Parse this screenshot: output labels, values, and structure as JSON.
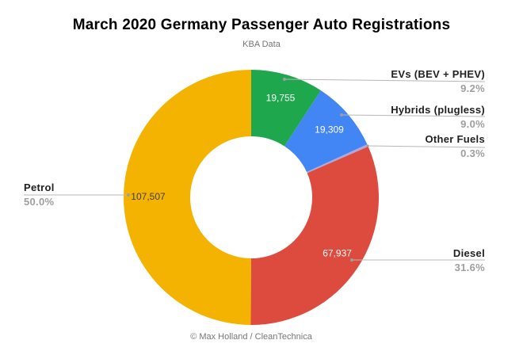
{
  "header": {
    "title": "March 2020 Germany Passenger Auto Registrations",
    "subtitle": "KBA Data"
  },
  "footer": {
    "credit": "© Max Holland / CleanTechnica"
  },
  "chart_data": {
    "type": "pie",
    "variant": "donut",
    "title": "March 2020 Germany Passenger Auto Registrations",
    "subtitle": "KBA Data",
    "legend_position": "none",
    "label_style": "external-callouts-with-leader-lines",
    "start_angle_deg": 0,
    "direction": "clockwise",
    "slices": [
      {
        "label": "EVs (BEV + PHEV)",
        "pct": "9.2%",
        "pct_value": 9.2,
        "value": 19755,
        "value_label": "19,755",
        "color": "#1fa74d",
        "value_text_color": "#ffffff"
      },
      {
        "label": "Hybrids (plugless)",
        "pct": "9.0%",
        "pct_value": 9.0,
        "value": 19309,
        "value_label": "19,309",
        "color": "#4285f4",
        "value_text_color": "#ffffff"
      },
      {
        "label": "Other Fuels",
        "pct": "0.3%",
        "pct_value": 0.3,
        "value_label": "",
        "color": "#b4a7d6",
        "value_text_color": "#ffffff"
      },
      {
        "label": "Diesel",
        "pct": "31.6%",
        "pct_value": 31.6,
        "value": 67937,
        "value_label": "67,937",
        "color": "#dd4b3e",
        "value_text_color": "#ffffff"
      },
      {
        "label": "Petrol",
        "pct": "50.0%",
        "pct_value": 50.0,
        "value": 107507,
        "value_label": "107,507",
        "color": "#f3b300",
        "value_text_color": "#404040"
      }
    ]
  }
}
